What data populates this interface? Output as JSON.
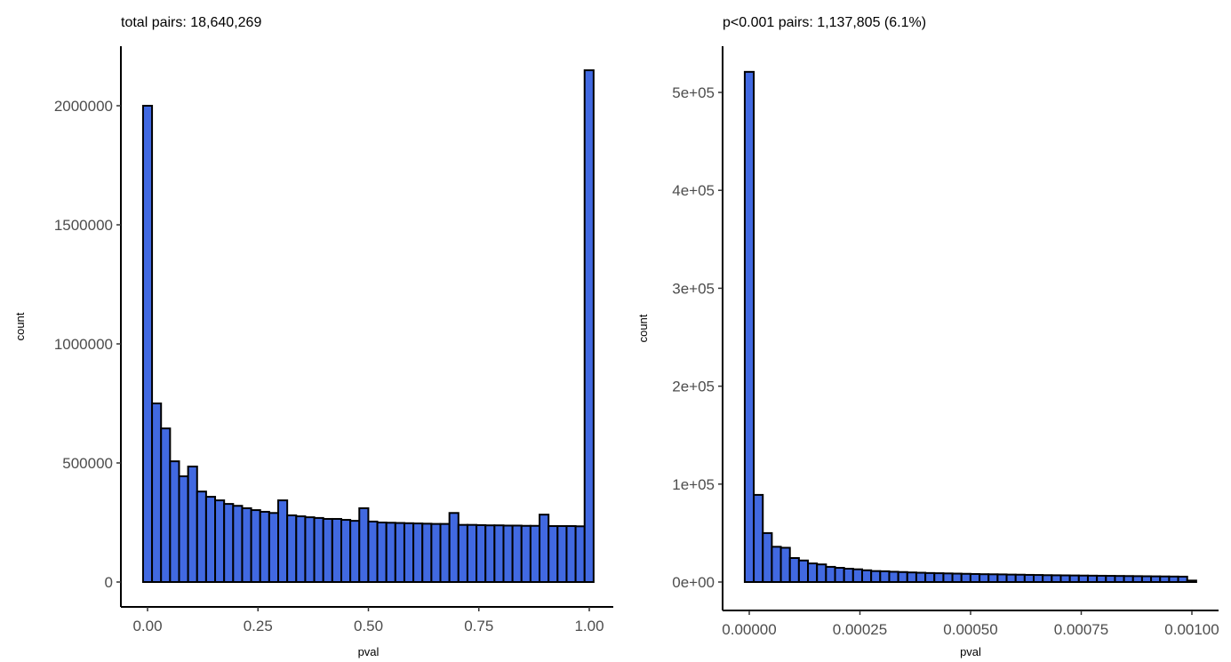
{
  "chart_data": [
    {
      "type": "bar",
      "subtype": "histogram",
      "title": "total pairs: 18,640,269",
      "xlabel": "pval",
      "ylabel": "count",
      "xlim": [
        -0.0102,
        1.0102
      ],
      "ylim": [
        0,
        2150000
      ],
      "grid": false,
      "legend": null,
      "x_ticks": [
        0,
        0.25,
        0.5,
        0.75,
        1.0
      ],
      "x_tick_labels": [
        "0.00",
        "0.25",
        "0.50",
        "0.75",
        "1.00"
      ],
      "y_ticks": [
        0,
        500000,
        1000000,
        1500000,
        2000000
      ],
      "y_tick_labels": [
        "0",
        "500000",
        "1000000",
        "1500000",
        "2000000"
      ],
      "bin_width": 0.0204,
      "fill_color": "#4169E1",
      "edge_color": "#000000",
      "values": [
        2000000,
        750000,
        645000,
        507000,
        444000,
        485000,
        380000,
        358000,
        343000,
        328000,
        320000,
        310000,
        302000,
        295000,
        290000,
        343000,
        280000,
        276000,
        272000,
        269000,
        265000,
        265000,
        261000,
        257000,
        310000,
        254000,
        250000,
        249000,
        248000,
        247000,
        246000,
        245000,
        244000,
        244000,
        290000,
        240000,
        240000,
        239000,
        238000,
        238000,
        237000,
        237000,
        236000,
        236000,
        283000,
        235000,
        235000,
        235000,
        234000,
        2149000
      ]
    },
    {
      "type": "bar",
      "subtype": "histogram",
      "title": "p<0.001 pairs: 1,137,805 (6.1%)",
      "xlabel": "pval",
      "ylabel": "count",
      "xlim": [
        -1e-05,
        0.00101
      ],
      "ylim": [
        0,
        525000
      ],
      "grid": false,
      "legend": null,
      "x_ticks": [
        0,
        0.00025,
        0.0005,
        0.00075,
        0.001
      ],
      "x_tick_labels": [
        "0.00000",
        "0.00025",
        "0.00050",
        "0.00075",
        "0.00100"
      ],
      "y_ticks": [
        0,
        100000,
        200000,
        300000,
        400000,
        500000
      ],
      "y_tick_labels": [
        "0e+00",
        "1e+05",
        "2e+05",
        "3e+05",
        "4e+05",
        "5e+05"
      ],
      "bin_width": 2.04e-05,
      "fill_color": "#4169E1",
      "edge_color": "#000000",
      "values": [
        521000,
        89000,
        50000,
        36000,
        35000,
        24500,
        22000,
        19000,
        18000,
        15500,
        14500,
        13600,
        13000,
        12000,
        11200,
        11000,
        10500,
        10200,
        9800,
        9500,
        9200,
        9000,
        8800,
        8600,
        8400,
        8200,
        8000,
        7900,
        7800,
        7600,
        7500,
        7300,
        7200,
        7000,
        6900,
        6800,
        6700,
        6600,
        6500,
        6400,
        6300,
        6200,
        6100,
        6000,
        5900,
        5800,
        5700,
        5600,
        5500,
        1500
      ]
    }
  ],
  "panels": {
    "left": {
      "title": "total pairs: 18,640,269",
      "xlabel": "pval",
      "ylabel": "count"
    },
    "right": {
      "title": "p<0.001 pairs: 1,137,805 (6.1%)",
      "xlabel": "pval",
      "ylabel": "count"
    }
  }
}
